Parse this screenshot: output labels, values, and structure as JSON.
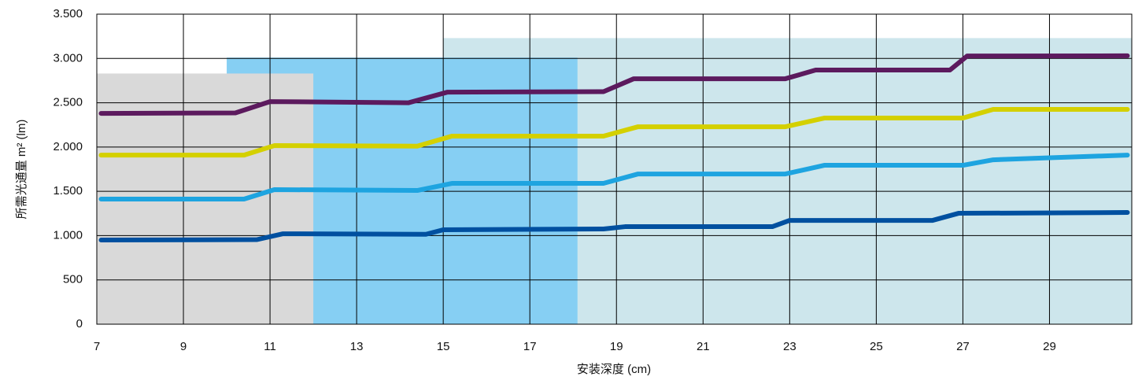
{
  "chart_data": {
    "type": "line",
    "x_label": "安装深度 (cm)",
    "y_label": "所需光通量  m² (lm)",
    "xlim": [
      7,
      30.9
    ],
    "ylim": [
      0,
      3500
    ],
    "xticks": [
      7,
      9,
      11,
      13,
      15,
      17,
      19,
      21,
      23,
      25,
      27,
      29
    ],
    "yticks": [
      0,
      500,
      {
        "value": 1000,
        "label": "1.000"
      },
      {
        "value": 1500,
        "label": "1.500"
      },
      {
        "value": 2000,
        "label": "2.000"
      },
      {
        "value": 2500,
        "label": "2.500"
      },
      {
        "value": 3000,
        "label": "3.000"
      },
      {
        "value": 3500,
        "label": "3.500"
      }
    ],
    "grid": true,
    "regions": [
      {
        "xrange": [
          15,
          30.9
        ],
        "top": 3230,
        "color": "#cde6ec"
      },
      {
        "xrange": [
          10,
          18.1
        ],
        "top": 3010,
        "color": "#86cff3"
      },
      {
        "xrange": [
          7,
          12
        ],
        "top": 2830,
        "color": "#d9d9d9"
      }
    ],
    "series": [
      {
        "color": "#5c1a5e",
        "x": [
          7.1,
          10.2,
          11,
          14.2,
          15.1,
          18.7,
          19.4,
          22.9,
          23.6,
          26.7,
          27.1,
          30.8
        ],
        "values": [
          2380,
          2385,
          2513,
          2500,
          2620,
          2625,
          2771,
          2771,
          2869,
          2869,
          3028,
          3030
        ]
      },
      {
        "color": "#d4d000",
        "x": [
          7.1,
          10.4,
          11.1,
          14.4,
          15.2,
          18.7,
          19.5,
          22.9,
          23.8,
          27,
          27.7,
          30.8
        ],
        "values": [
          1909,
          1909,
          2016,
          2010,
          2123,
          2123,
          2229,
          2229,
          2327,
          2327,
          2425,
          2425
        ]
      },
      {
        "color": "#1ea4e0",
        "x": [
          7.1,
          10.4,
          11.1,
          14.4,
          15.2,
          18.7,
          19.5,
          22.9,
          23.8,
          27,
          27.7,
          30.8
        ],
        "values": [
          1412,
          1412,
          1519,
          1510,
          1590,
          1590,
          1696,
          1696,
          1794,
          1794,
          1856,
          1909
        ]
      },
      {
        "color": "#0050a0",
        "x": [
          7.1,
          10.7,
          11.3,
          14.6,
          15,
          18.7,
          19.2,
          22.6,
          23,
          26.3,
          26.9,
          30.8
        ],
        "values": [
          950,
          955,
          1021,
          1015,
          1066,
          1075,
          1101,
          1101,
          1172,
          1172,
          1252,
          1261
        ]
      }
    ]
  }
}
